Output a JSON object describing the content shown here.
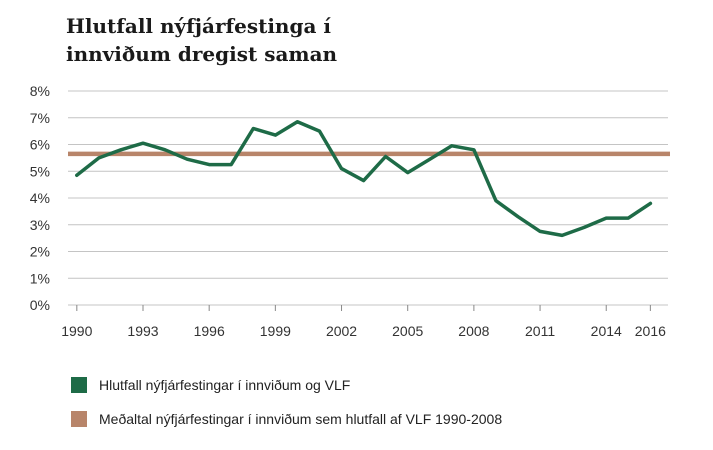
{
  "title_lines": [
    "Hlutfall nýfjárfestinga í",
    "innviðum dregist saman"
  ],
  "colors": {
    "series": "#1e6b47",
    "average": "#b8856a",
    "grid": "#c4c4c4",
    "axis": "#888888"
  },
  "chart_data": {
    "type": "line",
    "title": "Hlutfall nýfjárfestinga í innviðum dregist saman",
    "xlabel": "",
    "ylabel": "",
    "xlim": [
      1989.6,
      2016.8
    ],
    "ylim": [
      0,
      8
    ],
    "x_ticks": [
      1990,
      1993,
      1996,
      1999,
      2002,
      2005,
      2008,
      2011,
      2014,
      2016
    ],
    "y_ticks": [
      "0%",
      "1%",
      "2%",
      "3%",
      "4%",
      "5%",
      "6%",
      "7%",
      "8%"
    ],
    "grid": true,
    "legend": "bottom",
    "series": [
      {
        "name": "Hlutfall nýfjárfestingar í innviðum og VLF",
        "x": [
          1990,
          1991,
          1992,
          1993,
          1994,
          1995,
          1996,
          1997,
          1998,
          1999,
          2000,
          2001,
          2002,
          2003,
          2004,
          2005,
          2006,
          2007,
          2008,
          2009,
          2010,
          2011,
          2012,
          2013,
          2014,
          2015,
          2016
        ],
        "values": [
          4.85,
          5.5,
          5.8,
          6.05,
          5.8,
          5.45,
          5.25,
          5.25,
          6.6,
          6.35,
          6.85,
          6.5,
          5.1,
          4.65,
          5.55,
          4.95,
          5.45,
          5.95,
          5.8,
          3.9,
          3.3,
          2.75,
          2.6,
          2.9,
          3.25,
          3.25,
          3.8
        ]
      },
      {
        "name": "Meðaltal nýfjárfestingar í innviðum sem hlutfall af VLF 1990-2008",
        "value": 5.65
      }
    ]
  }
}
